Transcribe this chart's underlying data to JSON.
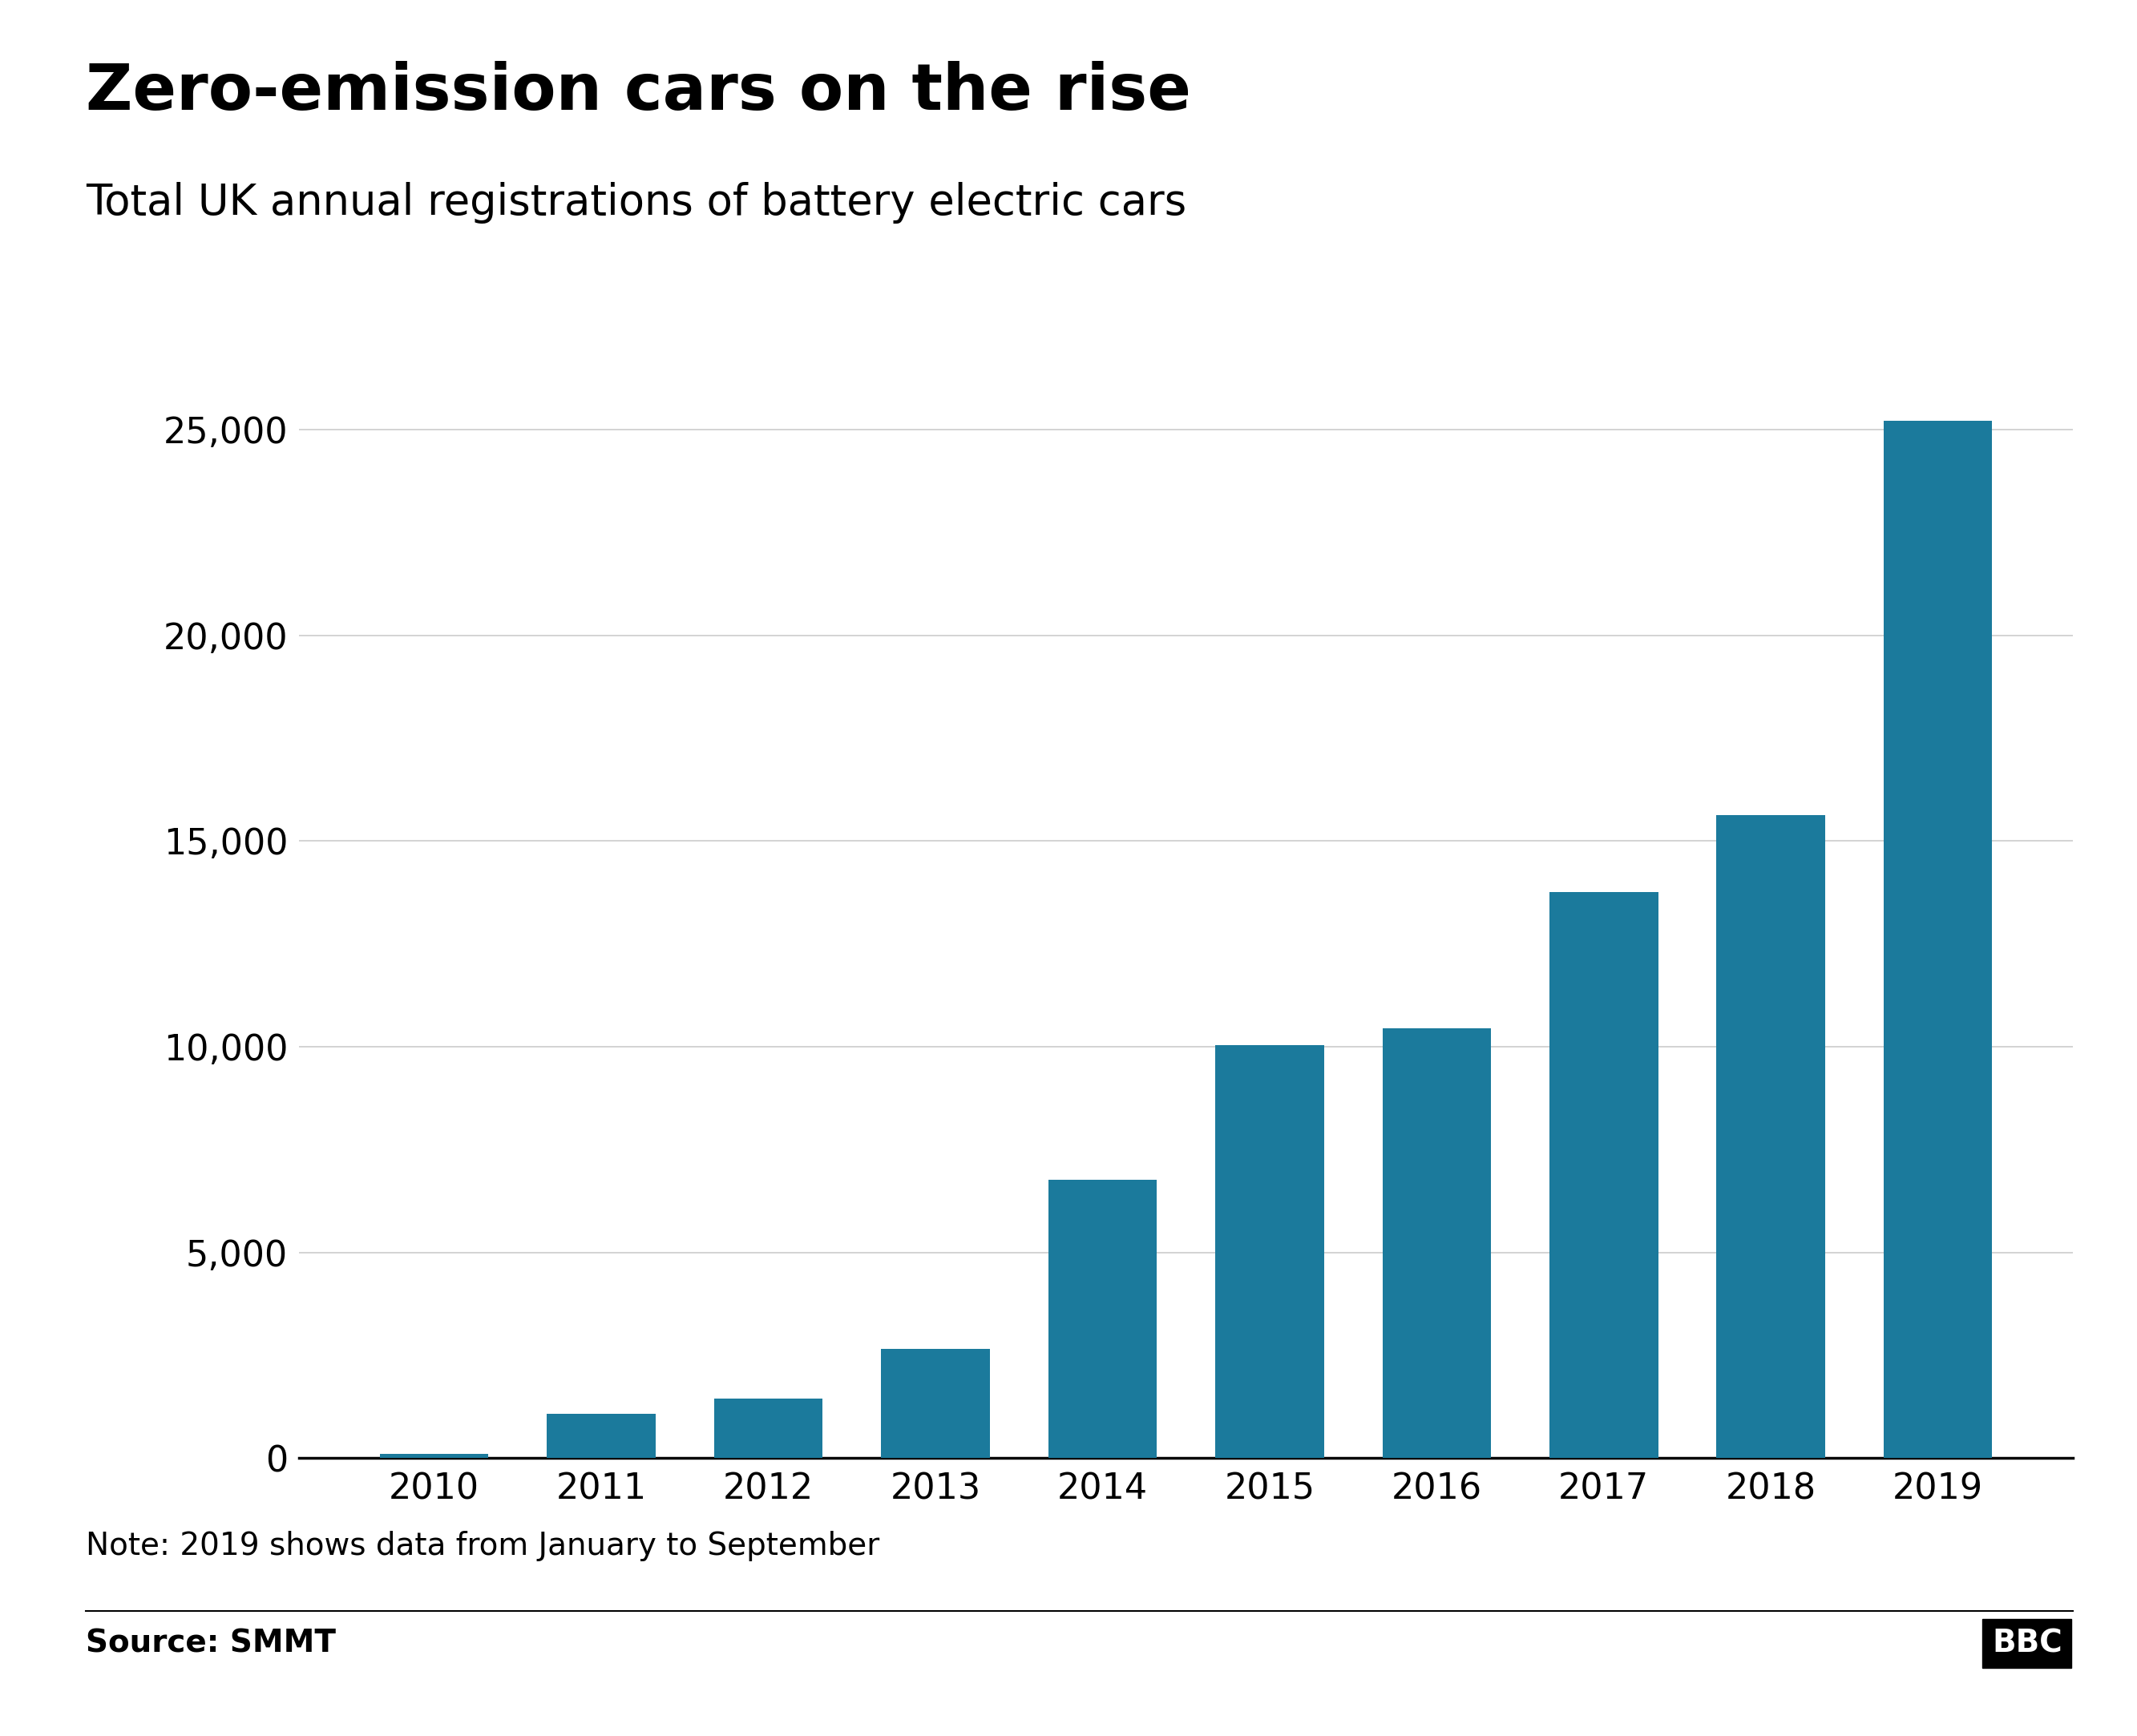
{
  "title": "Zero-emission cars on the rise",
  "subtitle": "Total UK annual registrations of battery electric cars",
  "years": [
    2010,
    2011,
    2012,
    2013,
    2014,
    2015,
    2016,
    2017,
    2018,
    2019
  ],
  "values": [
    110,
    1085,
    1444,
    2652,
    6773,
    10043,
    10447,
    13768,
    15629,
    25212
  ],
  "bar_color": "#1b7a9c",
  "ylim": [
    0,
    27000
  ],
  "yticks": [
    0,
    5000,
    10000,
    15000,
    20000,
    25000
  ],
  "note": "Note: 2019 shows data from January to September",
  "source": "Source: SMMT",
  "bbc_text": "BBC",
  "background_color": "#ffffff",
  "title_fontsize": 58,
  "subtitle_fontsize": 38,
  "tick_fontsize": 32,
  "note_fontsize": 28,
  "source_fontsize": 28,
  "bbc_fontsize": 28,
  "grid_color": "#cccccc",
  "axis_color": "#000000"
}
